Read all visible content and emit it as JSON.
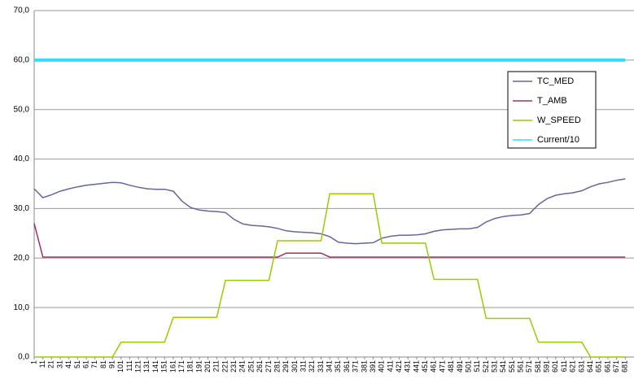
{
  "chart_data": {
    "type": "line",
    "categories": [
      "1",
      "11",
      "21",
      "31",
      "41",
      "51",
      "61",
      "71",
      "81",
      "91",
      "101",
      "111",
      "121",
      "131",
      "141",
      "151",
      "161",
      "171",
      "181",
      "191",
      "201",
      "211",
      "221",
      "231",
      "241",
      "251",
      "261",
      "271",
      "281",
      "291",
      "301",
      "311",
      "321",
      "331",
      "341",
      "351",
      "361",
      "371",
      "381",
      "391",
      "401",
      "411",
      "421",
      "431",
      "441",
      "451",
      "461",
      "471",
      "481",
      "491",
      "501",
      "511",
      "521",
      "531",
      "541",
      "551",
      "561",
      "571",
      "581",
      "591",
      "601",
      "611",
      "621",
      "631",
      "641",
      "651",
      "661",
      "671",
      "681"
    ],
    "series": [
      {
        "name": "TC_MED",
        "color": "#666699",
        "values": [
          34,
          32.2,
          32.8,
          33.5,
          34,
          34.4,
          34.7,
          34.9,
          35.1,
          35.3,
          35.2,
          34.7,
          34.3,
          34,
          33.9,
          33.9,
          33.5,
          31.5,
          30.2,
          29.7,
          29.5,
          29.4,
          29.2,
          27.8,
          26.9,
          26.6,
          26.5,
          26.3,
          26,
          25.5,
          25.3,
          25.2,
          25.1,
          24.9,
          24.3,
          23.2,
          23,
          22.9,
          23,
          23.1,
          24,
          24.4,
          24.6,
          24.6,
          24.7,
          24.9,
          25.4,
          25.7,
          25.8,
          25.9,
          25.9,
          26.2,
          27.3,
          28,
          28.4,
          28.6,
          28.7,
          29,
          30.8,
          32,
          32.7,
          33,
          33.2,
          33.6,
          34.4,
          35,
          35.3,
          35.7,
          36
        ]
      },
      {
        "name": "T_AMB",
        "color": "#993366",
        "values": [
          27,
          20.2,
          20.2,
          20.2,
          20.2,
          20.2,
          20.2,
          20.2,
          20.2,
          20.2,
          20.2,
          20.2,
          20.2,
          20.2,
          20.2,
          20.2,
          20.2,
          20.2,
          20.2,
          20.2,
          20.2,
          20.2,
          20.2,
          20.2,
          20.2,
          20.2,
          20.2,
          20.2,
          20.2,
          21,
          21,
          21,
          21,
          21,
          20.2,
          20.2,
          20.2,
          20.2,
          20.2,
          20.2,
          20.2,
          20.2,
          20.2,
          20.2,
          20.2,
          20.2,
          20.2,
          20.2,
          20.2,
          20.2,
          20.2,
          20.2,
          20.2,
          20.2,
          20.2,
          20.2,
          20.2,
          20.2,
          20.2,
          20.2,
          20.2,
          20.2,
          20.2,
          20.2,
          20.2,
          20.2,
          20.2,
          20.2,
          20.2
        ]
      },
      {
        "name": "W_SPEED",
        "color": "#99cc00",
        "values": [
          0,
          0,
          0,
          0,
          0,
          0,
          0,
          0,
          0,
          0,
          3,
          3,
          3,
          3,
          3,
          3,
          8,
          8,
          8,
          8,
          8,
          8,
          15.5,
          15.5,
          15.5,
          15.5,
          15.5,
          15.5,
          23.5,
          23.5,
          23.5,
          23.5,
          23.5,
          23.5,
          33,
          33,
          33,
          33,
          33,
          33,
          23,
          23,
          23,
          23,
          23,
          23,
          15.7,
          15.7,
          15.7,
          15.7,
          15.7,
          15.7,
          7.8,
          7.8,
          7.8,
          7.8,
          7.8,
          7.8,
          3,
          3,
          3,
          3,
          3,
          3,
          0,
          0,
          0,
          0,
          0
        ]
      },
      {
        "name": "Current/10",
        "color": "#33ddff",
        "values": [
          60,
          60,
          60,
          60,
          60,
          60,
          60,
          60,
          60,
          60,
          60,
          60,
          60,
          60,
          60,
          60,
          60,
          60,
          60,
          60,
          60,
          60,
          60,
          60,
          60,
          60,
          60,
          60,
          60,
          60,
          60,
          60,
          60,
          60,
          60,
          60,
          60,
          60,
          60,
          60,
          60,
          60,
          60,
          60,
          60,
          60,
          60,
          60,
          60,
          60,
          60,
          60,
          60,
          60,
          60,
          60,
          60,
          60,
          60,
          60,
          60,
          60,
          60,
          60,
          60,
          60,
          60,
          60,
          60
        ]
      }
    ],
    "ylim": [
      0,
      70
    ],
    "yticks": [
      {
        "value": 0,
        "label": "0,0"
      },
      {
        "value": 10,
        "label": "10,0"
      },
      {
        "value": 20,
        "label": "20,0"
      },
      {
        "value": 30,
        "label": "30,0"
      },
      {
        "value": 40,
        "label": "40,0"
      },
      {
        "value": 50,
        "label": "50,0"
      },
      {
        "value": 60,
        "label": "60,0"
      },
      {
        "value": 70,
        "label": "70,0"
      }
    ],
    "grid": true,
    "legend": "right"
  }
}
